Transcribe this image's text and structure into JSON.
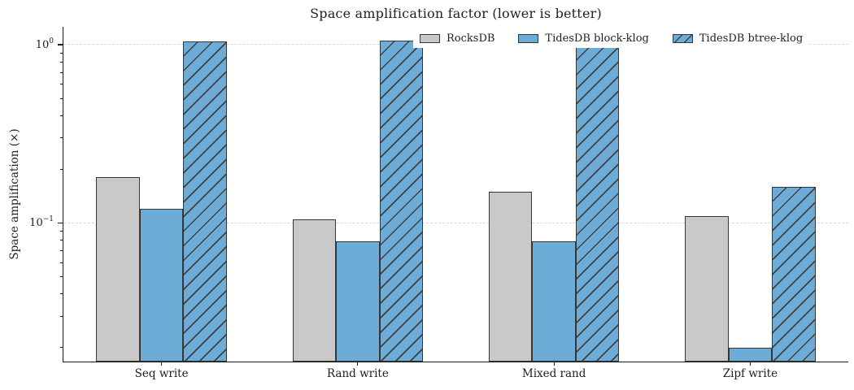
{
  "chart_data": {
    "type": "bar",
    "title": "Space amplification factor (lower is better)",
    "ylabel": "Space amplification (×)",
    "xlabel": "",
    "yscale": "log",
    "ylim": [
      0.0167,
      1.26
    ],
    "grid": "horizontal dashed lines at major ticks",
    "legend_position": "upper right inside plot, horizontal row",
    "yticks": [
      {
        "value": 1.0,
        "base": "10",
        "exponent": "0"
      },
      {
        "value": 0.1,
        "base": "10",
        "exponent": "−1"
      }
    ],
    "categories": [
      "Seq write",
      "Rand write",
      "Mixed rand",
      "Zipf write"
    ],
    "series": [
      {
        "name": "RocksDB",
        "color": "#c9c9c9",
        "hatch": false,
        "values": [
          0.18,
          0.105,
          0.15,
          0.109
        ]
      },
      {
        "name": "TidesDB block-klog",
        "color": "#6dacd7",
        "hatch": false,
        "values": [
          0.12,
          0.079,
          0.079,
          0.02
        ]
      },
      {
        "name": "TidesDB btree-klog",
        "color": "#6dacd7",
        "hatch": true,
        "values": [
          1.04,
          1.05,
          0.99,
          0.16
        ]
      }
    ],
    "colors": {
      "bar_edge": "#363636",
      "hatch_line": "#404040",
      "grid_line": "#d8d8d8",
      "axis_line": "#1a1a1a",
      "text": "#1f1f1f",
      "background": "#ffffff"
    }
  }
}
